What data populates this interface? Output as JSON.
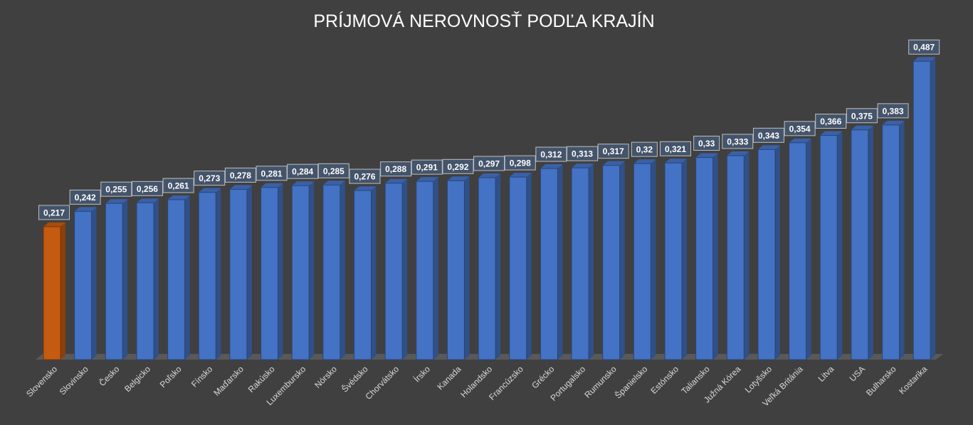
{
  "chart_data": {
    "type": "bar",
    "title": "PRÍJMOVÁ NEROVNOSŤ PODĽA KRAJÍN",
    "xlabel": "",
    "ylabel": "",
    "ylim": [
      0,
      0.5
    ],
    "grid": false,
    "legend": "none",
    "categories": [
      "Slovensko",
      "Slovinsko",
      "Česko",
      "Belgicko",
      "Poľsko",
      "Fínsko",
      "Maďarsko",
      "Rakúsko",
      "Luxembursko",
      "Nórsko",
      "Švédsko",
      "Chorvátsko",
      "Írsko",
      "Kanada",
      "Holandsko",
      "Francúzsko",
      "Grécko",
      "Portugalsko",
      "Rumunsko",
      "Španielsko",
      "Estónsko",
      "Taliansko",
      "Južná Kórea",
      "Lotyšsko",
      "Veľká Británia",
      "Litva",
      "USA",
      "Bulharsko",
      "Kostarika"
    ],
    "values": [
      0.217,
      0.242,
      0.255,
      0.256,
      0.261,
      0.273,
      0.278,
      0.281,
      0.284,
      0.285,
      0.276,
      0.288,
      0.291,
      0.292,
      0.297,
      0.298,
      0.312,
      0.313,
      0.317,
      0.32,
      0.321,
      0.33,
      0.333,
      0.343,
      0.354,
      0.366,
      0.375,
      0.383,
      0.487
    ],
    "data_labels": [
      "0,217",
      "0,242",
      "0,255",
      "0,256",
      "0,261",
      "0,273",
      "0,278",
      "0,281",
      "0,284",
      "0,285",
      "0,276",
      "0,288",
      "0,291",
      "0,292",
      "0,297",
      "0,298",
      "0,312",
      "0,313",
      "0,317",
      "0,32",
      "0,321",
      "0,33",
      "0,333",
      "0,343",
      "0,354",
      "0,366",
      "0,375",
      "0,383",
      "0,487"
    ],
    "highlight_index": 0,
    "colors": {
      "bar": "#4472C4",
      "highlight": "#C55A11",
      "background": "#404040",
      "text": "#D9D9D9"
    }
  }
}
